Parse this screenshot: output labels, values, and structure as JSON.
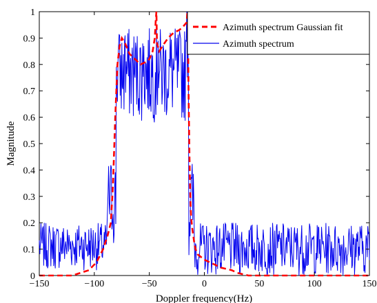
{
  "chart_data": {
    "type": "line",
    "title": "",
    "xlabel": "Doppler frequency(Hz)",
    "ylabel": "Magnitude",
    "xlim": [
      -150,
      150
    ],
    "ylim": [
      0,
      1
    ],
    "xticks": [
      -150,
      -100,
      -50,
      0,
      50,
      100,
      150
    ],
    "yticks": [
      0,
      0.1,
      0.2,
      0.3,
      0.4,
      0.5,
      0.6,
      0.7,
      0.8,
      0.9,
      1
    ],
    "xtick_labels": [
      "−150",
      "−100",
      "−50",
      "0",
      "50",
      "100",
      "150"
    ],
    "ytick_labels": [
      "0",
      "0.1",
      "0.2",
      "0.3",
      "0.4",
      "0.5",
      "0.6",
      "0.7",
      "0.8",
      "0.9",
      "1"
    ],
    "grid": false,
    "legend_position": "top-right",
    "series": [
      {
        "name": "Azimuth spectrum Gaussian fit",
        "color": "#ff0000",
        "style": "dashed",
        "x": [
          -150,
          -120,
          -105,
          -98,
          -92,
          -88,
          -85,
          -83,
          -81,
          -79,
          -77,
          -75,
          -72,
          -68,
          -63,
          -58,
          -53,
          -50,
          -47,
          -45,
          -44.3,
          -43.6,
          -43,
          -41,
          -38,
          -33,
          -28,
          -23,
          -20,
          -18,
          -16,
          -15.6,
          -15.2,
          -14.8,
          -14.5,
          -14,
          -13.5,
          -13,
          -12.5,
          -12,
          -11,
          -10,
          -9,
          -8,
          -6,
          -3,
          0,
          5,
          10,
          15,
          20,
          25,
          30,
          35,
          40,
          60,
          100,
          150
        ],
        "y": [
          0,
          0,
          0.02,
          0.05,
          0.1,
          0.15,
          0.2,
          0.35,
          0.6,
          0.8,
          0.87,
          0.9,
          0.88,
          0.84,
          0.82,
          0.8,
          0.81,
          0.82,
          0.85,
          0.9,
          0.96,
          1.0,
          0.88,
          0.85,
          0.87,
          0.9,
          0.92,
          0.93,
          0.94,
          0.95,
          0.96,
          0.99,
          1.0,
          0.9,
          0.75,
          0.6,
          0.45,
          0.35,
          0.27,
          0.22,
          0.18,
          0.15,
          0.12,
          0.1,
          0.08,
          0.07,
          0.06,
          0.05,
          0.04,
          0.03,
          0.025,
          0.02,
          0.01,
          0.005,
          0,
          0,
          0,
          0
        ]
      },
      {
        "name": "Azimuth spectrum",
        "color": "#0000ee",
        "style": "solid",
        "x_range": [
          -150,
          150
        ],
        "samples": 601,
        "seed": 7,
        "regions": [
          {
            "x_from": -150,
            "x_to": -88,
            "low": 0.02,
            "high": 0.2
          },
          {
            "x_from": -88,
            "x_to": -80,
            "low": 0.1,
            "high": 0.45
          },
          {
            "x_from": -80,
            "x_to": -14,
            "low": 0.58,
            "high": 0.94
          },
          {
            "x_from": -14,
            "x_to": -9,
            "low": 0.05,
            "high": 0.45
          },
          {
            "x_from": -9,
            "x_to": 150,
            "low": 0.0,
            "high": 0.2
          }
        ],
        "peaks": [
          {
            "x": -78,
            "y": 0.87
          },
          {
            "x": -72,
            "y": 0.91
          },
          {
            "x": -55,
            "y": 0.87
          },
          {
            "x": -42,
            "y": 0.89
          },
          {
            "x": -31,
            "y": 0.92
          },
          {
            "x": -22,
            "y": 0.91
          },
          {
            "x": -16,
            "y": 1.0
          },
          {
            "x": -15,
            "y": 0.88
          }
        ]
      }
    ]
  }
}
